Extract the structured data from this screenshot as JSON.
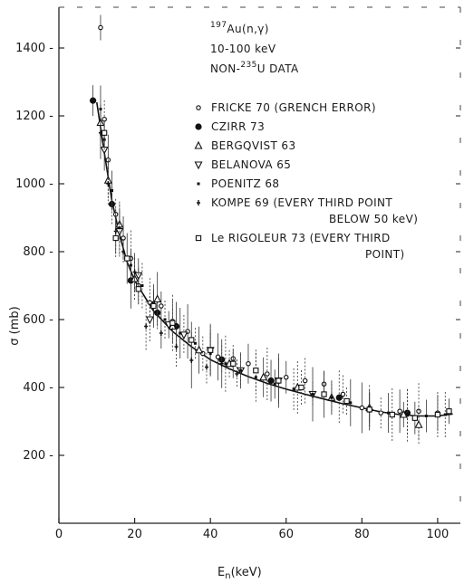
{
  "chart_data": {
    "type": "scatter",
    "title_lines": [
      "197Au(n,γ)",
      "10-100 keV",
      "NON-235U DATA"
    ],
    "xlabel": "En(keV)",
    "ylabel": "σ (mb)",
    "xlim": [
      0,
      106
    ],
    "ylim": [
      0,
      1520
    ],
    "xticks": [
      0,
      20,
      40,
      60,
      80,
      100
    ],
    "yticks": [
      200,
      400,
      600,
      800,
      1000,
      1200,
      1400
    ],
    "grid": false,
    "legend_position": "top-right",
    "fit_curve": {
      "x": [
        10,
        12,
        14,
        16,
        18,
        20,
        25,
        30,
        35,
        40,
        45,
        50,
        55,
        60,
        65,
        70,
        75,
        80,
        85,
        90,
        95,
        100,
        104
      ],
      "y": [
        1240,
        1090,
        950,
        850,
        770,
        715,
        625,
        565,
        520,
        482,
        455,
        432,
        412,
        395,
        380,
        366,
        352,
        340,
        328,
        320,
        316,
        316,
        322
      ]
    },
    "series": [
      {
        "name": "FRICKE 70 (GRENCH ERROR)",
        "marker": "open-circle-small",
        "x": [
          11,
          12,
          13,
          15,
          17,
          19,
          21,
          24,
          27,
          30,
          34,
          38,
          42,
          46,
          50,
          55,
          60,
          65,
          70,
          75,
          80,
          85,
          90,
          95,
          100
        ],
        "y": [
          1460,
          1190,
          1070,
          910,
          840,
          780,
          700,
          650,
          640,
          595,
          565,
          500,
          490,
          485,
          470,
          440,
          430,
          420,
          410,
          380,
          340,
          325,
          330,
          330,
          325
        ]
      },
      {
        "name": "CZIRR 73",
        "marker": "filled-circle",
        "x": [
          9,
          14,
          19,
          26,
          31,
          43,
          56,
          74,
          82,
          92
        ],
        "y": [
          1245,
          940,
          715,
          620,
          580,
          482,
          420,
          370,
          335,
          325
        ]
      },
      {
        "name": "BERGQVIST 63",
        "marker": "triangle-up",
        "x": [
          11,
          13,
          16,
          20,
          26,
          30,
          37,
          45,
          54,
          63,
          72,
          82,
          91,
          95
        ],
        "y": [
          1180,
          1010,
          880,
          720,
          660,
          580,
          510,
          470,
          430,
          400,
          370,
          340,
          320,
          290
        ]
      },
      {
        "name": "BELANOVA 65",
        "marker": "triangle-down",
        "x": [
          12,
          16,
          21,
          24,
          29,
          33,
          40,
          48,
          58,
          67
        ],
        "y": [
          1100,
          860,
          730,
          600,
          585,
          555,
          510,
          450,
          420,
          380
        ]
      },
      {
        "name": "POENITZ 68",
        "marker": "dot",
        "x": [
          11,
          12,
          14,
          16,
          19,
          22,
          25,
          28,
          32,
          36,
          40,
          44,
          48,
          52,
          57,
          62,
          67,
          72,
          77,
          82,
          87,
          92,
          97,
          102
        ],
        "y": [
          1220,
          1130,
          980,
          870,
          760,
          700,
          650,
          600,
          560,
          530,
          500,
          470,
          450,
          430,
          410,
          395,
          380,
          370,
          355,
          340,
          325,
          318,
          316,
          320
        ]
      },
      {
        "name": "KOMPE 69 (EVERY THIRD POINT BELOW 50 keV)",
        "marker": "dot-bar",
        "x": [
          11,
          13,
          15,
          17,
          20,
          23,
          27,
          31,
          35,
          39,
          43,
          47
        ],
        "y": [
          1150,
          1000,
          860,
          800,
          740,
          580,
          560,
          520,
          480,
          460,
          470,
          440
        ]
      },
      {
        "name": "Le RIGOLEUR 73 (EVERY THIRD POINT)",
        "marker": "open-square",
        "x": [
          12,
          15,
          18,
          21,
          25,
          30,
          35,
          40,
          46,
          52,
          58,
          64,
          70,
          76,
          82,
          88,
          94,
          100,
          103
        ],
        "y": [
          1150,
          840,
          780,
          690,
          640,
          590,
          540,
          510,
          470,
          450,
          420,
          400,
          380,
          360,
          335,
          320,
          310,
          320,
          330
        ]
      }
    ]
  }
}
